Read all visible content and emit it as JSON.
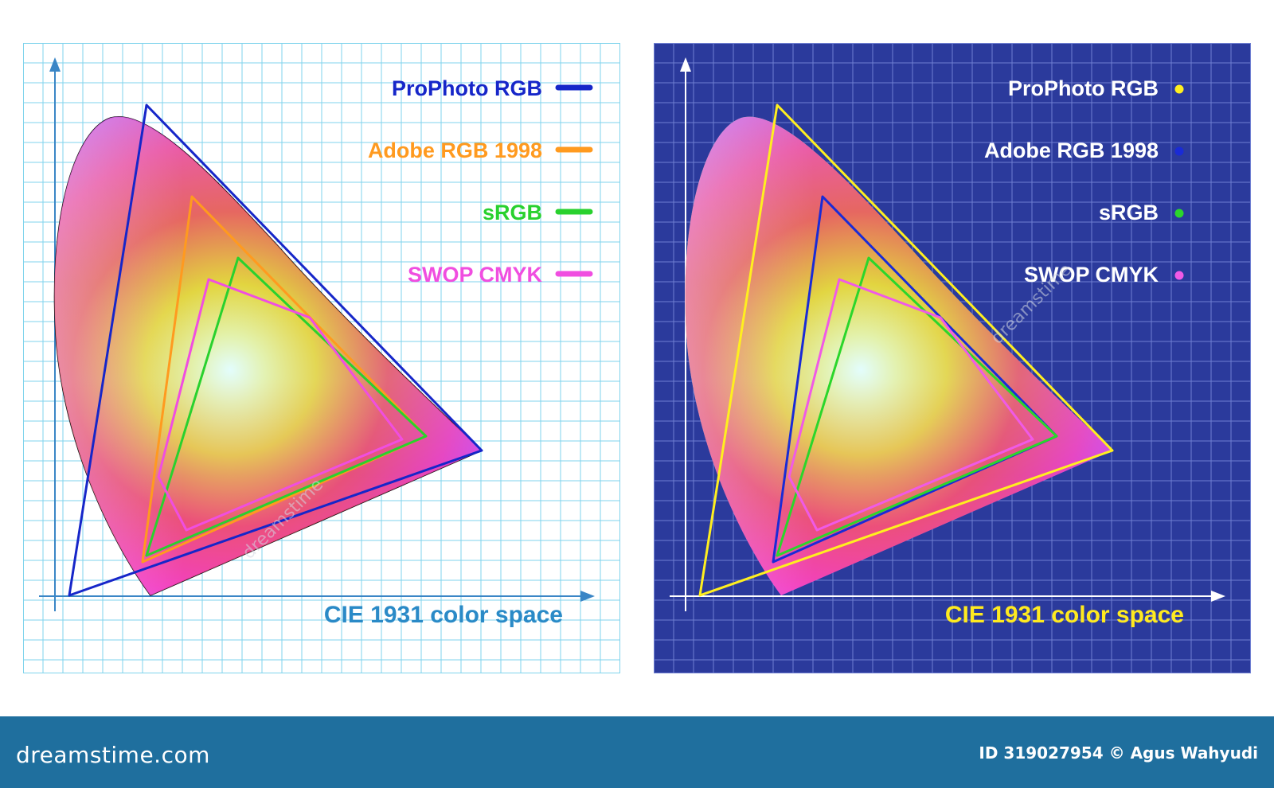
{
  "panels": [
    {
      "id": "light",
      "title": "CIE 1931 color space",
      "title_color": "#2a8ac7",
      "axis_color": "#3a86c6",
      "bg": "#ffffff",
      "grid_color": "#7fd3ec",
      "legend": [
        {
          "label": "ProPhoto RGB",
          "color": "#1626c9",
          "marker": "bar"
        },
        {
          "label": "Adobe RGB 1998",
          "color": "#ff9a1f",
          "marker": "bar"
        },
        {
          "label": "sRGB",
          "color": "#29d12e",
          "marker": "bar"
        },
        {
          "label": "SWOP CMYK",
          "color": "#f04ee0",
          "marker": "bar"
        }
      ],
      "gamut_colors": [
        "#1626c9",
        "#ff9a1f",
        "#29d12e",
        "#f04ee0"
      ]
    },
    {
      "id": "dark",
      "title": "CIE 1931 color space",
      "title_color": "#ffea1f",
      "axis_color": "#ffffff",
      "bg": "#2b3a9c",
      "grid_color": "#6f7fd2",
      "legend": [
        {
          "label": "ProPhoto RGB",
          "color": "#ffef1f",
          "marker": "dot"
        },
        {
          "label": "Adobe RGB 1998",
          "color": "#1a2bd6",
          "marker": "dot"
        },
        {
          "label": "sRGB",
          "color": "#2bd62b",
          "marker": "dot"
        },
        {
          "label": "SWOP CMYK",
          "color": "#f05ae6",
          "marker": "dot"
        }
      ],
      "gamut_colors": [
        "#ffef1f",
        "#1a2bd6",
        "#2bd62b",
        "#f05ae6"
      ]
    }
  ],
  "footer": {
    "brand": "dreamstime.com",
    "credit": "ID 319027954 © Agus Wahyudi"
  },
  "watermark": "dreamstime"
}
